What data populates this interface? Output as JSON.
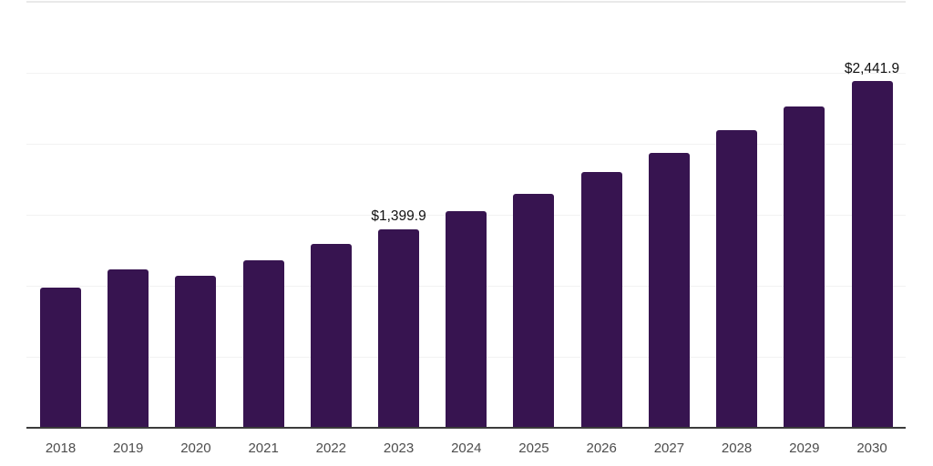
{
  "chart_data": {
    "type": "bar",
    "title": "",
    "xlabel": "",
    "ylabel": "",
    "categories": [
      "2018",
      "2019",
      "2020",
      "2021",
      "2022",
      "2023",
      "2024",
      "2025",
      "2026",
      "2027",
      "2028",
      "2029",
      "2030"
    ],
    "values": [
      987,
      1114,
      1072,
      1177,
      1292,
      1399.9,
      1527,
      1648,
      1800,
      1933,
      2099,
      2264,
      2441.9
    ],
    "data_labels": [
      "",
      "",
      "",
      "",
      "",
      "$1,399.9",
      "",
      "",
      "",
      "",
      "",
      "",
      "$2,441.9"
    ],
    "ylim": [
      0,
      3000
    ],
    "gridline_step": 500,
    "grid": "horizontal-only",
    "legend_position": "none",
    "y_tick_labels_visible": false,
    "colors": {
      "bar": "#371450",
      "axis_line": "#3b3b3b",
      "gridline": "#f2f2f2",
      "top_gridline": "#e9e9e9",
      "tick_label": "#4d4d4d",
      "data_label": "#111111",
      "background": "#ffffff"
    }
  }
}
